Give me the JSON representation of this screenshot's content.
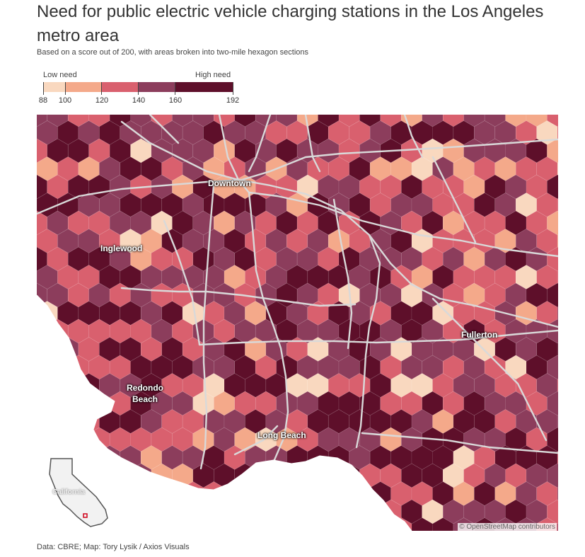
{
  "title": "Need for public electric vehicle charging stations in the Los Angeles metro area",
  "subtitle": "Based on a score out of 200, with areas broken into two-mile hexagon sections",
  "legend": {
    "low_label": "Low need",
    "high_label": "High need",
    "ticks": [
      "88",
      "100",
      "120",
      "140",
      "160",
      "192"
    ],
    "breaks": [
      88,
      100,
      120,
      140,
      160,
      192
    ],
    "colors": [
      "#f9d8bf",
      "#f4a98a",
      "#d9606e",
      "#8c3d5c",
      "#5e0f2a"
    ]
  },
  "map": {
    "cities": {
      "downtown": "Downtown",
      "inglewood": "Inglewood",
      "redondo": "Redondo Beach",
      "long_beach": "Long Beach",
      "fullerton": "Fullerton"
    },
    "inset_label": "California",
    "attribution": "© OpenStreetMap contributors"
  },
  "credit": "Data: CBRE; Map: Tory Lysik / Axios Visuals"
}
